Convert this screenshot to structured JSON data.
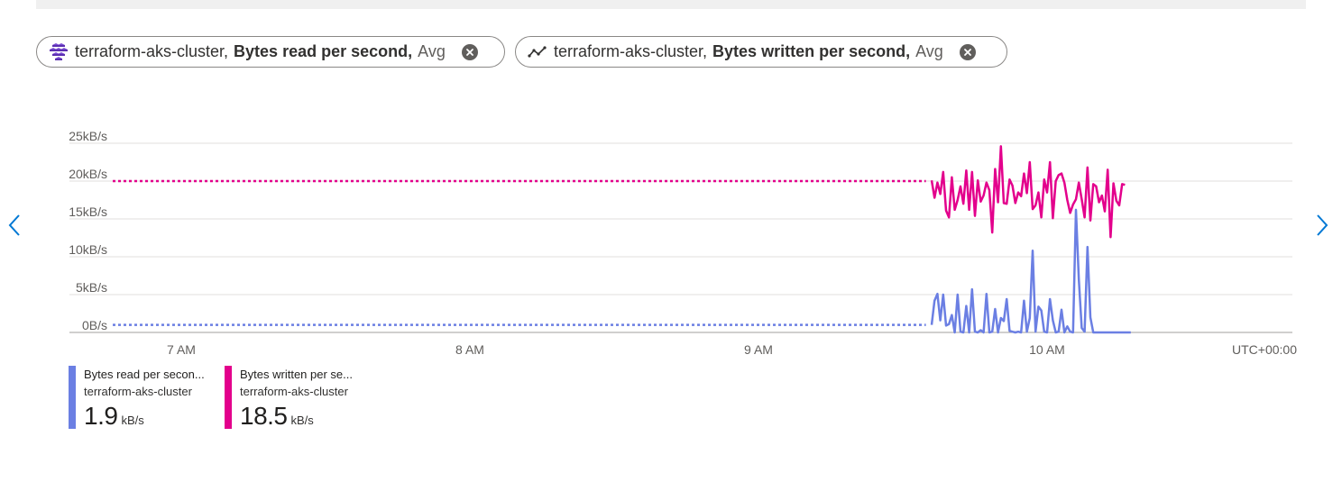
{
  "pills": [
    {
      "resource": "terraform-aks-cluster,",
      "metric": "Bytes read per second,",
      "aggregation": "Avg",
      "icon": "aks-cluster-icon"
    },
    {
      "resource": "terraform-aks-cluster,",
      "metric": "Bytes written per second,",
      "aggregation": "Avg",
      "icon": "line-chart-icon"
    }
  ],
  "legend": [
    {
      "name": "Bytes read per secon...",
      "resource": "terraform-aks-cluster",
      "value": "1.9",
      "unit": "kB/s",
      "color": "#6b7fe3"
    },
    {
      "name": "Bytes written per se...",
      "resource": "terraform-aks-cluster",
      "value": "18.5",
      "unit": "kB/s",
      "color": "#e3008c"
    }
  ],
  "nav": {
    "prev_icon": "chevron-left-icon",
    "next_icon": "chevron-right-icon",
    "color": "#0078d4"
  },
  "chart_data": {
    "type": "line",
    "title": "",
    "xlabel": "",
    "ylabel": "",
    "timezone_label": "UTC+00:00",
    "x_ticks": [
      "7 AM",
      "8 AM",
      "9 AM",
      "10 AM"
    ],
    "x_tick_hours": [
      7,
      8,
      9,
      10
    ],
    "xlim_hours": [
      6.6,
      10.85
    ],
    "y_ticks": [
      "0B/s",
      "5kB/s",
      "10kB/s",
      "15kB/s",
      "20kB/s",
      "25kB/s"
    ],
    "ylim_kbps": [
      0,
      25
    ],
    "grid": true,
    "series": [
      {
        "name": "Bytes read per second",
        "color": "#6b7fe3",
        "dotted_segment": {
          "x_start_hours": 6.6,
          "x_end_hours": 9.58,
          "value_kbps": 1.0
        },
        "x_start_hours": 9.6,
        "x_step_hours": 0.01,
        "values_kbps": [
          1.0,
          4.2,
          5.1,
          1.6,
          5.0,
          0.9,
          1.1,
          2.3,
          0.0,
          5.0,
          0.1,
          0.0,
          3.5,
          0.0,
          5.7,
          0.1,
          0.0,
          0.3,
          0.0,
          5.1,
          0.0,
          0.1,
          3.1,
          0.0,
          1.9,
          1.5,
          4.4,
          0.2,
          0.1,
          0.0,
          0.1,
          0.0,
          4.2,
          0.1,
          1.9,
          10.8,
          0.1,
          3.4,
          2.9,
          0.1,
          0.0,
          4.4,
          1.6,
          0.0,
          0.1,
          3.0,
          0.0,
          0.8,
          0.1,
          0.0,
          16.2,
          7.0,
          0.6,
          0.1,
          11.3,
          2.0,
          0.0,
          0.0,
          0.0,
          0.0,
          0.0,
          0.0,
          0.0,
          0.0,
          0.0,
          0.0,
          0.0,
          0.0,
          0.0,
          0.0
        ]
      },
      {
        "name": "Bytes written per second",
        "color": "#e3008c",
        "dotted_segment": {
          "x_start_hours": 6.6,
          "x_end_hours": 9.58,
          "value_kbps": 20.0
        },
        "x_start_hours": 9.6,
        "x_step_hours": 0.01,
        "values_kbps": [
          20.1,
          17.8,
          19.8,
          18.3,
          21.2,
          16.1,
          15.2,
          20.5,
          16.2,
          17.5,
          19.3,
          17.0,
          21.4,
          16.2,
          21.2,
          15.4,
          20.1,
          17.3,
          18.1,
          19.8,
          18.8,
          13.2,
          21.6,
          17.2,
          24.6,
          17.1,
          17.0,
          20.2,
          19.4,
          17.1,
          18.5,
          18.0,
          21.0,
          18.4,
          22.5,
          16.3,
          16.8,
          18.5,
          15.2,
          20.2,
          18.5,
          22.5,
          15.1,
          20.0,
          20.8,
          21.0,
          19.8,
          17.5,
          15.8,
          16.9,
          17.6,
          19.8,
          17.6,
          15.2,
          21.8,
          14.8,
          19.6,
          19.3,
          17.2,
          18.1,
          16.0,
          21.5,
          12.6,
          19.7,
          17.4,
          16.8,
          19.6,
          19.5
        ]
      }
    ]
  }
}
